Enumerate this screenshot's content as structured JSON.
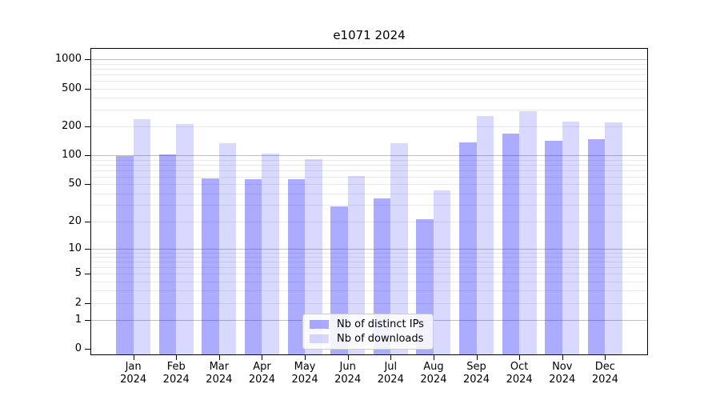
{
  "title": "e1071 2024",
  "legend": {
    "items": [
      {
        "label": "Nb of distinct IPs",
        "series": "ips"
      },
      {
        "label": "Nb of downloads",
        "series": "downloads"
      }
    ]
  },
  "colors": {
    "bar_base": "#0000FF",
    "bar_ips_alpha": 0.33,
    "bar_downloads_alpha": 0.15,
    "bar_ips_solid": "#ABABFF",
    "bar_downloads_solid": "#DCDCFF",
    "grid_major": "#c0c0c0",
    "grid_minor": "#eaeaea",
    "spine": "#000000",
    "background": "#ffffff",
    "text": "#000000"
  },
  "chart_data": {
    "type": "bar",
    "title": "e1071 2024",
    "categories": [
      "Jan 2024",
      "Feb 2024",
      "Mar 2024",
      "Apr 2024",
      "May 2024",
      "Jun 2024",
      "Jul 2024",
      "Aug 2024",
      "Sep 2024",
      "Oct 2024",
      "Nov 2024",
      "Dec 2024"
    ],
    "months": [
      "Jan",
      "Feb",
      "Mar",
      "Apr",
      "May",
      "Jun",
      "Jul",
      "Aug",
      "Sep",
      "Oct",
      "Nov",
      "Dec"
    ],
    "year": "2024",
    "series": [
      {
        "name": "Nb of distinct IPs",
        "key": "ips",
        "values": [
          99,
          103,
          58,
          57,
          57,
          29,
          35,
          21,
          138,
          170,
          144,
          148
        ]
      },
      {
        "name": "Nb of downloads",
        "key": "downloads",
        "values": [
          240,
          212,
          135,
          104,
          92,
          61,
          135,
          43,
          260,
          292,
          225,
          221
        ]
      }
    ],
    "yscale": "log(1+y)",
    "yticks": [
      0,
      1,
      2,
      5,
      10,
      20,
      50,
      100,
      200,
      500,
      1000
    ],
    "ytick_labels": [
      "0",
      "1",
      "2",
      "5",
      "10",
      "20",
      "50",
      "100",
      "200",
      "500",
      "1000"
    ],
    "grid_major_at": [
      1,
      10,
      100,
      1000
    ],
    "grid_minor_at": [
      2,
      3,
      4,
      5,
      6,
      7,
      8,
      9,
      20,
      30,
      40,
      50,
      60,
      70,
      80,
      90,
      200,
      300,
      400,
      500,
      600,
      700,
      800,
      900
    ],
    "ylim": [
      0,
      1270
    ],
    "grid": "horizontal, major + minor",
    "legend_position": "lower center inside plot"
  }
}
